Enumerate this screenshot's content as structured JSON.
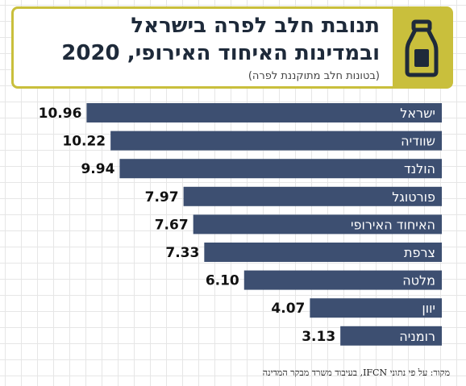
{
  "header": {
    "title_line1": "תנובת חלב לפרה בישראל",
    "title_line2": "ובמדינות האיחוד האירופי, 2020",
    "subtitle": "(בטונות חלב מתוקננת לפרה)",
    "icon": "milk-bottle-icon"
  },
  "colors": {
    "accent": "#c9bf3c",
    "bar": "#3d4f71"
  },
  "chart_data": {
    "type": "bar",
    "orientation": "horizontal",
    "categories": [
      "ישראל",
      "שוודיה",
      "הולנד",
      "פורטוגל",
      "האיחוד האירופי",
      "צרפת",
      "מלטה",
      "יוון",
      "רומניה"
    ],
    "values": [
      10.96,
      10.22,
      9.94,
      7.97,
      7.67,
      7.33,
      6.1,
      4.07,
      3.13
    ],
    "value_labels": [
      "10.96",
      "10.22",
      "9.94",
      "7.97",
      "7.67",
      "7.33",
      "6.10",
      "4.07",
      "3.13"
    ],
    "title": "תנובת חלב לפרה בישראל ובמדינות האיחוד האירופי, 2020",
    "ylabel": "",
    "xlabel": ""
  },
  "source_note": "מקור: על פי נתוני IFCN, בעיבוד משרד מבקר המדינה"
}
